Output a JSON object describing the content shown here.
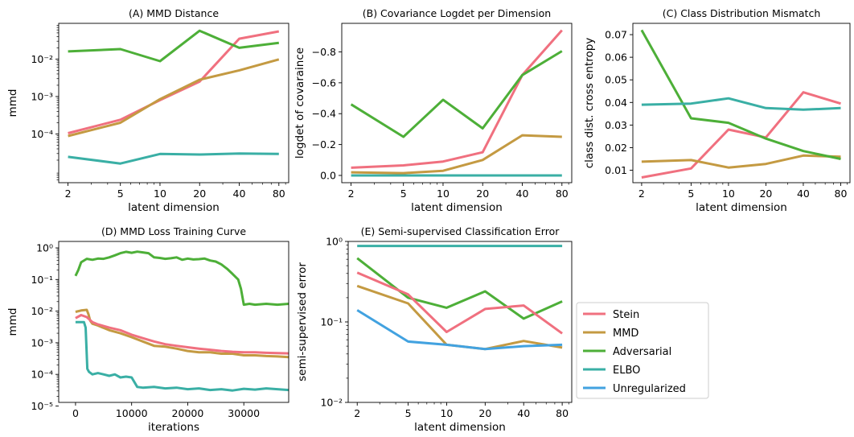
{
  "colors": {
    "stein": "#f0707f",
    "mmd": "#c49a42",
    "adversarial": "#4daf38",
    "elbo": "#3aafa5",
    "unregularized": "#42a2e0"
  },
  "legend": {
    "placement": "right-middle",
    "entries": [
      {
        "key": "stein",
        "label": "Stein"
      },
      {
        "key": "mmd",
        "label": "MMD"
      },
      {
        "key": "adversarial",
        "label": "Adversarial"
      },
      {
        "key": "elbo",
        "label": "ELBO"
      },
      {
        "key": "unregularized",
        "label": "Unregularized"
      }
    ]
  },
  "chart_data": [
    {
      "id": "A",
      "type": "line",
      "title": "(A) MMD Distance",
      "xlabel": "latent dimension",
      "ylabel": "mmd",
      "xscale": "log",
      "yscale": "log",
      "x": [
        2,
        5,
        10,
        20,
        40,
        80
      ],
      "xticks": [
        2,
        5,
        10,
        20,
        40,
        80
      ],
      "xlim": [
        1.7,
        95
      ],
      "ylim": [
        5e-06,
        0.09
      ],
      "yticks": [
        0.0001,
        0.001,
        0.01
      ],
      "ytick_labels": [
        "10⁻⁴",
        "10⁻³",
        "10⁻²"
      ],
      "series": [
        {
          "key": "stein",
          "values": [
            0.000105,
            0.00024,
            0.0008,
            0.0025,
            0.035,
            0.055
          ]
        },
        {
          "key": "mmd",
          "values": [
            8.8e-05,
            0.0002,
            0.00085,
            0.0028,
            0.005,
            0.0098
          ]
        },
        {
          "key": "adversarial",
          "values": [
            0.016,
            0.0185,
            0.0088,
            0.057,
            0.02,
            0.027
          ]
        },
        {
          "key": "elbo",
          "values": [
            2.45e-05,
            1.62e-05,
            2.92e-05,
            2.82e-05,
            3.02e-05,
            2.92e-05
          ]
        }
      ]
    },
    {
      "id": "B",
      "type": "line",
      "title": "(B) Covariance Logdet per Dimension",
      "xlabel": "latent dimension",
      "ylabel": "logdet of covaraince",
      "xscale": "log",
      "yscale": "linear",
      "y_inverted": true,
      "x": [
        2,
        5,
        10,
        20,
        40,
        80
      ],
      "xticks": [
        2,
        5,
        10,
        20,
        40,
        80
      ],
      "xlim": [
        1.7,
        95
      ],
      "ylim": [
        0.047,
        -0.985
      ],
      "yticks": [
        0.0,
        -0.2,
        -0.4,
        -0.6,
        -0.8
      ],
      "ytick_labels": [
        "0.0",
        "−0.2",
        "−0.4",
        "−0.6",
        "−0.8"
      ],
      "series": [
        {
          "key": "stein",
          "values": [
            -0.05,
            -0.065,
            -0.09,
            -0.15,
            -0.65,
            -0.94
          ]
        },
        {
          "key": "mmd",
          "values": [
            -0.02,
            -0.015,
            -0.03,
            -0.1,
            -0.26,
            -0.25
          ]
        },
        {
          "key": "adversarial",
          "values": [
            -0.46,
            -0.25,
            -0.49,
            -0.305,
            -0.65,
            -0.805
          ]
        },
        {
          "key": "elbo",
          "values": [
            0.0,
            0.0,
            0.0,
            0.0,
            0.0,
            0.0
          ]
        }
      ]
    },
    {
      "id": "C",
      "type": "line",
      "title": "(C) Class Distribution Mismatch",
      "xlabel": "latent dimension",
      "ylabel": "class dist. cross entropy",
      "xscale": "log",
      "yscale": "linear",
      "x": [
        2,
        5,
        10,
        20,
        40,
        80
      ],
      "xticks": [
        2,
        5,
        10,
        20,
        40,
        80
      ],
      "xlim": [
        1.7,
        95
      ],
      "ylim": [
        0.0045,
        0.075
      ],
      "yticks": [
        0.01,
        0.02,
        0.03,
        0.04,
        0.05,
        0.06,
        0.07
      ],
      "ytick_labels": [
        "0.01",
        "0.02",
        "0.03",
        "0.04",
        "0.05",
        "0.06",
        "0.07"
      ],
      "series": [
        {
          "key": "stein",
          "values": [
            0.0068,
            0.0108,
            0.028,
            0.0245,
            0.0445,
            0.0395
          ]
        },
        {
          "key": "mmd",
          "values": [
            0.0138,
            0.0145,
            0.0112,
            0.0128,
            0.0165,
            0.016
          ]
        },
        {
          "key": "adversarial",
          "values": [
            0.072,
            0.033,
            0.031,
            0.024,
            0.0185,
            0.015
          ]
        },
        {
          "key": "elbo",
          "values": [
            0.039,
            0.0395,
            0.0418,
            0.0375,
            0.0368,
            0.0375
          ]
        }
      ]
    },
    {
      "id": "D",
      "type": "line",
      "title": "(D) MMD Loss Training Curve",
      "xlabel": "iterations",
      "ylabel": "mmd",
      "xscale": "linear",
      "yscale": "log",
      "xlim": [
        -3000,
        38000
      ],
      "xticks": [
        0,
        10000,
        20000,
        30000
      ],
      "xtick_labels": [
        "0",
        "10000",
        "20000",
        "30000"
      ],
      "ylim": [
        1.3e-05,
        1.6
      ],
      "yticks": [
        1e-05,
        0.0001,
        0.001,
        0.01,
        0.1,
        1
      ],
      "ytick_labels": [
        "10⁻⁵",
        "10⁻⁴",
        "10⁻³",
        "10⁻²",
        "10⁻¹",
        "10⁰"
      ],
      "series": [
        {
          "key": "adversarial",
          "x": [
            0,
            500,
            1000,
            2000,
            3000,
            4000,
            5000,
            6000,
            7000,
            8000,
            9000,
            10000,
            11000,
            12000,
            13000,
            14000,
            15000,
            16000,
            17000,
            18000,
            19000,
            20000,
            21000,
            22000,
            23000,
            24000,
            25000,
            26000,
            27000,
            28000,
            29000,
            29500,
            30000,
            31000,
            32000,
            34000,
            36000,
            38000
          ],
          "values": [
            0.13,
            0.2,
            0.35,
            0.45,
            0.42,
            0.46,
            0.45,
            0.5,
            0.58,
            0.68,
            0.75,
            0.7,
            0.76,
            0.72,
            0.68,
            0.5,
            0.48,
            0.45,
            0.47,
            0.5,
            0.42,
            0.46,
            0.43,
            0.44,
            0.46,
            0.4,
            0.37,
            0.3,
            0.22,
            0.15,
            0.1,
            0.05,
            0.016,
            0.017,
            0.016,
            0.017,
            0.016,
            0.017
          ]
        },
        {
          "key": "mmd",
          "x": [
            0,
            1000,
            2000,
            2300,
            2600,
            3000,
            4000,
            6000,
            8000,
            10000,
            12000,
            14000,
            16000,
            18000,
            20000,
            22000,
            24000,
            26000,
            28000,
            30000,
            32000,
            34000,
            36000,
            38000
          ],
          "values": [
            0.0095,
            0.0105,
            0.011,
            0.008,
            0.005,
            0.004,
            0.0035,
            0.0025,
            0.002,
            0.0015,
            0.0011,
            0.0008,
            0.00075,
            0.00065,
            0.00055,
            0.0005,
            0.0005,
            0.00045,
            0.00045,
            0.0004,
            0.0004,
            0.00038,
            0.00037,
            0.00035
          ]
        },
        {
          "key": "stein",
          "x": [
            0,
            1000,
            2000,
            3000,
            4000,
            6000,
            8000,
            10000,
            12000,
            14000,
            16000,
            18000,
            20000,
            22000,
            24000,
            26000,
            28000,
            30000,
            32000,
            34000,
            36000,
            38000
          ],
          "values": [
            0.006,
            0.0075,
            0.0065,
            0.0045,
            0.0038,
            0.003,
            0.0025,
            0.0018,
            0.0014,
            0.0011,
            0.0009,
            0.0008,
            0.00072,
            0.00065,
            0.0006,
            0.00055,
            0.00052,
            0.0005,
            0.0005,
            0.00048,
            0.00047,
            0.00046
          ]
        },
        {
          "key": "elbo",
          "x": [
            0,
            1500,
            1800,
            2100,
            2400,
            3000,
            4000,
            5000,
            6000,
            7000,
            8000,
            9000,
            10000,
            11000,
            12000,
            14000,
            16000,
            18000,
            20000,
            22000,
            24000,
            26000,
            28000,
            30000,
            32000,
            34000,
            36000,
            38000
          ],
          "values": [
            0.0045,
            0.0045,
            0.003,
            0.00015,
            0.00012,
            0.0001,
            0.00011,
            0.0001,
            9e-05,
            0.0001,
            8e-05,
            8.5e-05,
            8e-05,
            4e-05,
            3.8e-05,
            4e-05,
            3.6e-05,
            3.8e-05,
            3.4e-05,
            3.6e-05,
            3.2e-05,
            3.4e-05,
            3.1e-05,
            3.5e-05,
            3.3e-05,
            3.6e-05,
            3.4e-05,
            3.2e-05
          ]
        }
      ]
    },
    {
      "id": "E",
      "type": "line",
      "title": "(E) Semi-supervised Classification Error",
      "xlabel": "latent dimension",
      "ylabel": "semi-supervised error",
      "xscale": "log",
      "yscale": "log",
      "x": [
        2,
        5,
        10,
        20,
        40,
        80
      ],
      "xticks": [
        2,
        5,
        10,
        20,
        40,
        80
      ],
      "xlim": [
        1.7,
        95
      ],
      "ylim": [
        0.01,
        1.0
      ],
      "yticks": [
        0.01,
        0.1,
        1
      ],
      "ytick_labels": [
        "10⁻²",
        "10⁻¹",
        "10⁰"
      ],
      "series": [
        {
          "key": "elbo",
          "values": [
            0.88,
            0.88,
            0.88,
            0.88,
            0.88,
            0.88
          ]
        },
        {
          "key": "adversarial",
          "values": [
            0.62,
            0.2,
            0.15,
            0.24,
            0.11,
            0.18
          ]
        },
        {
          "key": "stein",
          "values": [
            0.41,
            0.22,
            0.075,
            0.145,
            0.16,
            0.072
          ]
        },
        {
          "key": "mmd",
          "values": [
            0.28,
            0.17,
            0.052,
            0.046,
            0.058,
            0.048
          ]
        },
        {
          "key": "unregularized",
          "values": [
            0.14,
            0.057,
            0.052,
            0.046,
            0.05,
            0.052
          ]
        }
      ]
    }
  ]
}
